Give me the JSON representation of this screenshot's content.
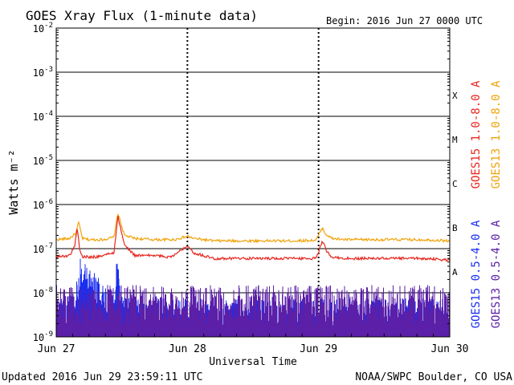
{
  "header": {
    "title": "GOES Xray Flux (1-minute data)",
    "begin": "Begin:  2016 Jun 27 0000 UTC"
  },
  "footer": {
    "updated": "Updated 2016 Jun 29 23:59:11 UTC",
    "credit": "NOAA/SWPC Boulder, CO USA"
  },
  "chart_data": {
    "type": "line",
    "title": "GOES Xray Flux (1-minute data)",
    "xlabel": "Universal Time",
    "ylabel": "Watts m⁻²",
    "yscale": "log",
    "ylim": [
      1e-09,
      0.01
    ],
    "xlim_days": [
      0,
      3
    ],
    "x_ticks": [
      {
        "label": "Jun 27",
        "day": 0
      },
      {
        "label": "Jun 28",
        "day": 1
      },
      {
        "label": "Jun 29",
        "day": 2
      },
      {
        "label": "Jun 30",
        "day": 3
      }
    ],
    "y_ticks": [
      {
        "base": "10",
        "exp": "-2",
        "value": 0.01
      },
      {
        "base": "10",
        "exp": "-3",
        "value": 0.001
      },
      {
        "base": "10",
        "exp": "-4",
        "value": 0.0001
      },
      {
        "base": "10",
        "exp": "-5",
        "value": 1e-05
      },
      {
        "base": "10",
        "exp": "-6",
        "value": 1e-06
      },
      {
        "base": "10",
        "exp": "-7",
        "value": 1e-07
      },
      {
        "base": "10",
        "exp": "-8",
        "value": 1e-08
      },
      {
        "base": "10",
        "exp": "-9",
        "value": 1e-09
      }
    ],
    "flare_classes": [
      {
        "label": "X",
        "value": 0.0003
      },
      {
        "label": "M",
        "value": 3e-05
      },
      {
        "label": "C",
        "value": 3e-06
      },
      {
        "label": "B",
        "value": 3e-07
      },
      {
        "label": "A",
        "value": 3e-08
      }
    ],
    "grid": true,
    "legend": [
      {
        "label": "GOES15 1.0-8.0 A",
        "color": "#e8251e"
      },
      {
        "label": "GOES13 1.0-8.0 A",
        "color": "#f0a30a"
      },
      {
        "label": "GOES15 0.5-4.0 A",
        "color": "#1a2ef0"
      },
      {
        "label": "GOES13 0.5-4.0 A",
        "color": "#5b1fa8"
      }
    ],
    "series": [
      {
        "name": "GOES13 1.0-8.0 A",
        "color": "#f0a30a",
        "x": [
          0,
          0.1,
          0.15,
          0.17,
          0.2,
          0.25,
          0.35,
          0.44,
          0.47,
          0.52,
          0.6,
          0.75,
          0.9,
          1.0,
          1.05,
          1.2,
          1.5,
          1.8,
          1.98,
          2.03,
          2.05,
          2.1,
          2.2,
          2.5,
          2.8,
          3.0
        ],
        "y": [
          1.6e-07,
          1.7e-07,
          2.2e-07,
          4e-07,
          1.7e-07,
          1.6e-07,
          1.6e-07,
          1.8e-07,
          6.5e-07,
          2e-07,
          1.7e-07,
          1.6e-07,
          1.6e-07,
          1.9e-07,
          1.7e-07,
          1.5e-07,
          1.5e-07,
          1.5e-07,
          1.55e-07,
          3e-07,
          2.2e-07,
          1.7e-07,
          1.6e-07,
          1.6e-07,
          1.6e-07,
          1.5e-07
        ]
      },
      {
        "name": "GOES15 1.0-8.0 A",
        "color": "#e8251e",
        "x": [
          0,
          0.1,
          0.14,
          0.16,
          0.18,
          0.2,
          0.3,
          0.44,
          0.47,
          0.52,
          0.6,
          0.75,
          0.85,
          0.9,
          1.0,
          1.05,
          1.2,
          1.5,
          1.75,
          1.85,
          1.98,
          2.03,
          2.06,
          2.1,
          2.2,
          2.5,
          2.8,
          3.0
        ],
        "y": [
          6.5e-08,
          7e-08,
          1.1e-07,
          3e-07,
          9e-08,
          6.5e-08,
          6.5e-08,
          8e-08,
          5.5e-07,
          1.2e-07,
          7e-08,
          7e-08,
          6.5e-08,
          7e-08,
          1.2e-07,
          8e-08,
          6e-08,
          6e-08,
          6e-08,
          6e-08,
          6e-08,
          1.5e-07,
          9e-08,
          6.5e-08,
          6e-08,
          6e-08,
          6e-08,
          5.5e-08
        ]
      },
      {
        "name": "GOES15 0.5-4.0 A",
        "color": "#1a2ef0",
        "x": [
          0,
          0.15,
          0.17,
          0.44,
          0.47,
          0.5,
          1.0,
          2.0,
          3.0
        ],
        "y": [
          1.5e-09,
          2e-09,
          1.4e-08,
          2e-09,
          2.5e-08,
          2e-09,
          1.5e-09,
          1.5e-09,
          1.5e-09
        ]
      },
      {
        "name": "GOES13 0.5-4.0 A",
        "color": "#5b1fa8",
        "x": [
          0,
          0.5,
          1.0,
          1.5,
          2.0,
          2.5,
          3.0
        ],
        "y": [
          3e-09,
          3e-09,
          3e-09,
          3e-09,
          3e-09,
          3e-09,
          3e-09
        ]
      }
    ]
  }
}
